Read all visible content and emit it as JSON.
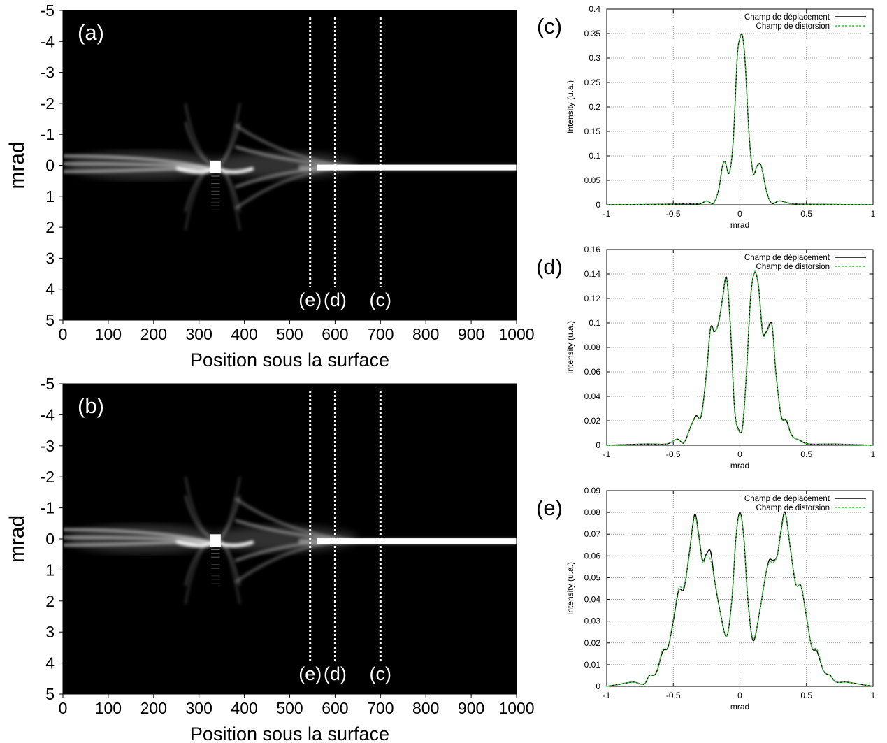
{
  "colors": {
    "map_background": "#000000",
    "map_beam": "#ffffff",
    "series_deplacement": "#000000",
    "series_distorsion": "#33cc33",
    "grid": "#888888",
    "marker_line": "#ffffff"
  },
  "chart_data": [
    {
      "panel": "(a)",
      "type": "heatmap",
      "title": "",
      "xlabel": "Position sous la surface",
      "ylabel": "mrad",
      "xlim": [
        0,
        1000
      ],
      "ylim": [
        -5,
        5
      ],
      "y_inverted": true,
      "xticks": [
        "0",
        "100",
        "200",
        "300",
        "400",
        "500",
        "600",
        "700",
        "800",
        "900",
        "1000"
      ],
      "yticks": [
        "-5",
        "-4",
        "-3",
        "-2",
        "-1",
        "0",
        "1",
        "2",
        "3",
        "4",
        "5"
      ],
      "markers": [
        {
          "label": "(e)",
          "x": 545
        },
        {
          "label": "(d)",
          "x": 600
        },
        {
          "label": "(c)",
          "x": 700
        }
      ],
      "colormap": "grayscale",
      "grid": false
    },
    {
      "panel": "(b)",
      "type": "heatmap",
      "title": "",
      "xlabel": "Position sous la surface",
      "ylabel": "mrad",
      "xlim": [
        0,
        1000
      ],
      "ylim": [
        -5,
        5
      ],
      "y_inverted": true,
      "xticks": [
        "0",
        "100",
        "200",
        "300",
        "400",
        "500",
        "600",
        "700",
        "800",
        "900",
        "1000"
      ],
      "yticks": [
        "-5",
        "-4",
        "-3",
        "-2",
        "-1",
        "0",
        "1",
        "2",
        "3",
        "4",
        "5"
      ],
      "markers": [
        {
          "label": "(e)",
          "x": 545
        },
        {
          "label": "(d)",
          "x": 600
        },
        {
          "label": "(c)",
          "x": 700
        }
      ],
      "colormap": "grayscale",
      "grid": false
    },
    {
      "panel": "(c)",
      "type": "line",
      "xlabel": "mrad",
      "ylabel": "Intensity (u.a.)",
      "xlim": [
        -1,
        1
      ],
      "ylim": [
        0,
        0.4
      ],
      "xticks": [
        "-1",
        "-0.5",
        "0",
        "0.5",
        "1"
      ],
      "yticks": [
        "0",
        "0.05",
        "0.1",
        "0.15",
        "0.2",
        "0.25",
        "0.3",
        "0.35",
        "0.4"
      ],
      "grid": true,
      "legend_position": "top-right",
      "series": [
        {
          "name": "Champ de déplacement",
          "x": [
            -1,
            -0.6,
            -0.4,
            -0.3,
            -0.25,
            -0.2,
            -0.16,
            -0.13,
            -0.11,
            -0.08,
            -0.05,
            -0.02,
            0,
            0.02,
            0.04,
            0.07,
            0.1,
            0.13,
            0.16,
            0.2,
            0.24,
            0.3,
            0.4,
            0.6,
            1
          ],
          "y": [
            0,
            0.001,
            0.002,
            0.002,
            0.008,
            0.003,
            0.03,
            0.08,
            0.087,
            0.065,
            0.13,
            0.3,
            0.34,
            0.345,
            0.29,
            0.14,
            0.065,
            0.08,
            0.08,
            0.028,
            0.003,
            0.008,
            0.002,
            0.001,
            0
          ]
        },
        {
          "name": "Champ de distorsion",
          "x": [
            -1,
            -0.6,
            -0.4,
            -0.3,
            -0.25,
            -0.2,
            -0.16,
            -0.13,
            -0.11,
            -0.08,
            -0.05,
            -0.02,
            0,
            0.02,
            0.04,
            0.07,
            0.1,
            0.13,
            0.16,
            0.2,
            0.24,
            0.3,
            0.4,
            0.6,
            1
          ],
          "y": [
            0,
            0.001,
            0.002,
            0.002,
            0.008,
            0.003,
            0.03,
            0.079,
            0.086,
            0.066,
            0.13,
            0.3,
            0.341,
            0.344,
            0.29,
            0.14,
            0.066,
            0.079,
            0.079,
            0.028,
            0.003,
            0.008,
            0.002,
            0.001,
            0
          ]
        }
      ]
    },
    {
      "panel": "(d)",
      "type": "line",
      "xlabel": "mrad",
      "ylabel": "Intensity (u.a.)",
      "xlim": [
        -1,
        1
      ],
      "ylim": [
        0,
        0.16
      ],
      "xticks": [
        "-1",
        "-0.5",
        "0",
        "0.5",
        "1"
      ],
      "yticks": [
        "0",
        "0.02",
        "0.04",
        "0.06",
        "0.08",
        "0.1",
        "0.12",
        "0.14",
        "0.16"
      ],
      "grid": true,
      "legend_position": "top-right",
      "series": [
        {
          "name": "Champ de déplacement",
          "x": [
            -1,
            -0.7,
            -0.55,
            -0.47,
            -0.42,
            -0.37,
            -0.33,
            -0.29,
            -0.25,
            -0.22,
            -0.19,
            -0.16,
            -0.13,
            -0.1,
            -0.07,
            -0.04,
            -0.01,
            0.02,
            0.05,
            0.08,
            0.11,
            0.14,
            0.17,
            0.2,
            0.24,
            0.27,
            0.31,
            0.35,
            0.39,
            0.45,
            0.52,
            0.7,
            1
          ],
          "y": [
            0,
            0.001,
            0.001,
            0.005,
            0.002,
            0.015,
            0.024,
            0.024,
            0.06,
            0.096,
            0.093,
            0.1,
            0.12,
            0.137,
            0.095,
            0.03,
            0.013,
            0.015,
            0.06,
            0.12,
            0.141,
            0.13,
            0.093,
            0.093,
            0.099,
            0.06,
            0.024,
            0.02,
            0.008,
            0.004,
            0.001,
            0.001,
            0
          ]
        },
        {
          "name": "Champ de distorsion",
          "x": [
            -1,
            -0.7,
            -0.55,
            -0.47,
            -0.42,
            -0.37,
            -0.33,
            -0.29,
            -0.25,
            -0.22,
            -0.19,
            -0.16,
            -0.13,
            -0.1,
            -0.07,
            -0.04,
            -0.01,
            0.02,
            0.05,
            0.08,
            0.11,
            0.14,
            0.17,
            0.2,
            0.24,
            0.27,
            0.31,
            0.35,
            0.39,
            0.45,
            0.52,
            0.7,
            1
          ],
          "y": [
            0,
            0.001,
            0.001,
            0.005,
            0.002,
            0.015,
            0.023,
            0.025,
            0.06,
            0.095,
            0.092,
            0.101,
            0.119,
            0.136,
            0.096,
            0.031,
            0.012,
            0.016,
            0.061,
            0.119,
            0.142,
            0.129,
            0.092,
            0.092,
            0.098,
            0.061,
            0.023,
            0.021,
            0.008,
            0.004,
            0.001,
            0.001,
            0
          ]
        }
      ]
    },
    {
      "panel": "(e)",
      "type": "line",
      "xlabel": "mrad",
      "ylabel": "Intensity (u.a.)",
      "xlim": [
        -1,
        1
      ],
      "ylim": [
        0,
        0.09
      ],
      "xticks": [
        "-1",
        "-0.5",
        "0",
        "0.5",
        "1"
      ],
      "yticks": [
        "0",
        "0.01",
        "0.02",
        "0.03",
        "0.04",
        "0.05",
        "0.06",
        "0.07",
        "0.08",
        "0.09"
      ],
      "grid": true,
      "legend_position": "top-right",
      "series": [
        {
          "name": "Champ de déplacement",
          "x": [
            -1,
            -0.9,
            -0.8,
            -0.72,
            -0.68,
            -0.63,
            -0.58,
            -0.54,
            -0.5,
            -0.46,
            -0.42,
            -0.38,
            -0.34,
            -0.31,
            -0.28,
            -0.25,
            -0.22,
            -0.19,
            -0.15,
            -0.1,
            -0.06,
            -0.03,
            0,
            0.03,
            0.06,
            0.1,
            0.15,
            0.19,
            0.22,
            0.25,
            0.28,
            0.31,
            0.34,
            0.38,
            0.42,
            0.46,
            0.5,
            0.54,
            0.58,
            0.63,
            0.68,
            0.72,
            0.8,
            0.9,
            1
          ],
          "y": [
            0,
            0.001,
            0.002,
            0.001,
            0.005,
            0.006,
            0.016,
            0.018,
            0.03,
            0.044,
            0.045,
            0.061,
            0.079,
            0.07,
            0.058,
            0.061,
            0.062,
            0.049,
            0.035,
            0.023,
            0.04,
            0.068,
            0.08,
            0.068,
            0.04,
            0.021,
            0.035,
            0.05,
            0.058,
            0.058,
            0.06,
            0.072,
            0.08,
            0.063,
            0.047,
            0.046,
            0.032,
            0.018,
            0.016,
            0.007,
            0.005,
            0.002,
            0.002,
            0.001,
            0
          ]
        },
        {
          "name": "Champ de distorsion",
          "x": [
            -1,
            -0.9,
            -0.8,
            -0.72,
            -0.68,
            -0.63,
            -0.58,
            -0.54,
            -0.5,
            -0.46,
            -0.42,
            -0.38,
            -0.34,
            -0.31,
            -0.28,
            -0.25,
            -0.22,
            -0.19,
            -0.15,
            -0.1,
            -0.06,
            -0.03,
            0,
            0.03,
            0.06,
            0.1,
            0.15,
            0.19,
            0.22,
            0.25,
            0.28,
            0.31,
            0.34,
            0.38,
            0.42,
            0.46,
            0.5,
            0.54,
            0.58,
            0.63,
            0.68,
            0.72,
            0.8,
            0.9,
            1
          ],
          "y": [
            0,
            0.001,
            0.002,
            0.001,
            0.005,
            0.006,
            0.017,
            0.018,
            0.031,
            0.045,
            0.046,
            0.06,
            0.078,
            0.069,
            0.057,
            0.06,
            0.058,
            0.049,
            0.035,
            0.023,
            0.04,
            0.068,
            0.079,
            0.068,
            0.04,
            0.022,
            0.035,
            0.05,
            0.057,
            0.057,
            0.06,
            0.071,
            0.079,
            0.063,
            0.047,
            0.046,
            0.032,
            0.018,
            0.017,
            0.007,
            0.005,
            0.002,
            0.002,
            0.001,
            0
          ]
        }
      ]
    }
  ]
}
